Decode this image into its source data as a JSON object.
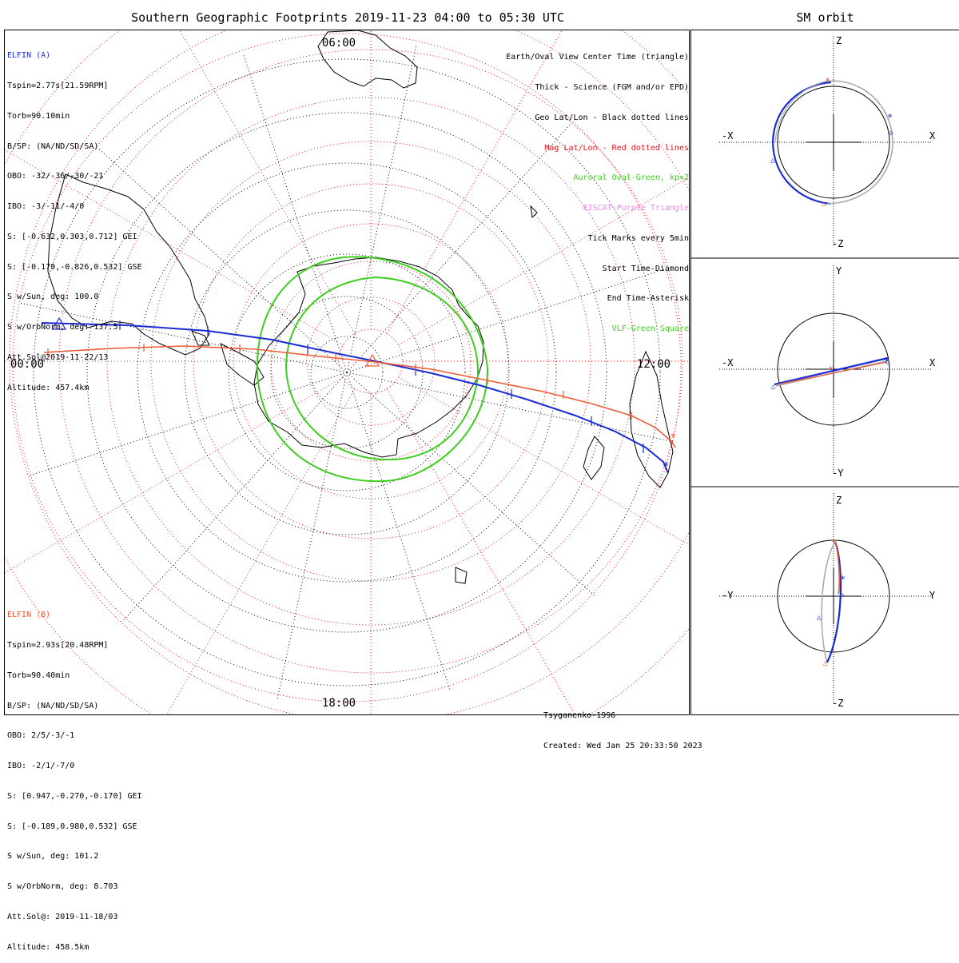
{
  "title": "Southern Geographic Footprints 2019-11-23 04:00 to 05:30 UTC",
  "sm_title": "SM orbit",
  "elfin_a": {
    "lines": [
      "ELFIN (A)",
      "Tspin=2.77s[21.59RPM]",
      "Torb=90.10min",
      "B/SP: (NA/ND/SD/SA)",
      "OBO: -32/-36/-30/-21",
      "IBO: -3/-11/-4/0",
      "S: [-0.632,0.303,0.712] GEI",
      "S: [-0.179,-0.826,0.532] GSE",
      "S w/Sun, deg: 100.0",
      "S w/OrbNorm, deg: 137.5",
      "Att.Sol@2019-11-22/13",
      "Altitude: 457.4km"
    ]
  },
  "elfin_b": {
    "lines": [
      "ELFIN (B)",
      "Tspin=2.93s[20.48RPM]",
      "Torb=90.40min",
      "B/SP: (NA/ND/SD/SA)",
      "OBO: 2/5/-3/-1",
      "IBO: -2/1/-7/0",
      "S: [0.947,-0.270,-0.170] GEI",
      "S: [-0.189,0.980,0.532] GSE",
      "S w/Sun, deg: 101.2",
      "S w/OrbNorm, deg: 8.703",
      "Att.Sol@: 2019-11-18/03",
      "Altitude: 458.5km"
    ]
  },
  "legend": [
    {
      "text": "Earth/Oval View Center Time (triangle)",
      "color": "#000000"
    },
    {
      "text": "Thick - Science (FGM and/or EPD)",
      "color": "#000000"
    },
    {
      "text": "Geo Lat/Lon - Black dotted lines",
      "color": "#000000"
    },
    {
      "text": "Mag Lat/Lon - Red dotted lines",
      "color": "#e8141e"
    },
    {
      "text": "Auroral Oval-Green, kp=2",
      "color": "#3ccd1e"
    },
    {
      "text": "EISCAT-Purple Triangle",
      "color": "#e68cf0"
    },
    {
      "text": "Tick Marks every 5min",
      "color": "#000000"
    },
    {
      "text": "Start Time-Diamond",
      "color": "#000000"
    },
    {
      "text": "End Time-Asterisk",
      "color": "#000000"
    },
    {
      "text": "VLF-Green Square",
      "color": "#3ccd1e"
    }
  ],
  "credit": {
    "model": "Tsyganenko-1996",
    "created": "Created: Wed Jan 25 20:33:50 2023"
  },
  "colors": {
    "elfin_a": "#1a2bd6",
    "elfin_b": "#f05a32",
    "mag_grid": "#e8141e",
    "oval": "#3ccd1e",
    "orbit_gray": "#aaaaaa"
  },
  "chart_data": [
    {
      "type": "polar-map",
      "title": "Southern Geographic Footprints 2019-11-23 04:00 to 05:30 UTC",
      "mlt_labels": [
        "06:00",
        "12:00",
        "18:00",
        "00:00"
      ],
      "series": [
        {
          "name": "ELFIN (A)",
          "color": "#1a2bd6"
        },
        {
          "name": "ELFIN (B)",
          "color": "#f05a32"
        }
      ],
      "auroral_oval_kp": 2
    },
    {
      "type": "orbit-projection",
      "title": "SM orbit",
      "panels": [
        {
          "x_axis": [
            "-X",
            "X"
          ],
          "y_axis": [
            "Z",
            "-Z"
          ]
        },
        {
          "x_axis": [
            "-X",
            "X"
          ],
          "y_axis": [
            "Y",
            "-Y"
          ]
        },
        {
          "x_axis": [
            "-Y",
            "Y"
          ],
          "y_axis": [
            "Z",
            "-Z"
          ]
        }
      ]
    }
  ]
}
